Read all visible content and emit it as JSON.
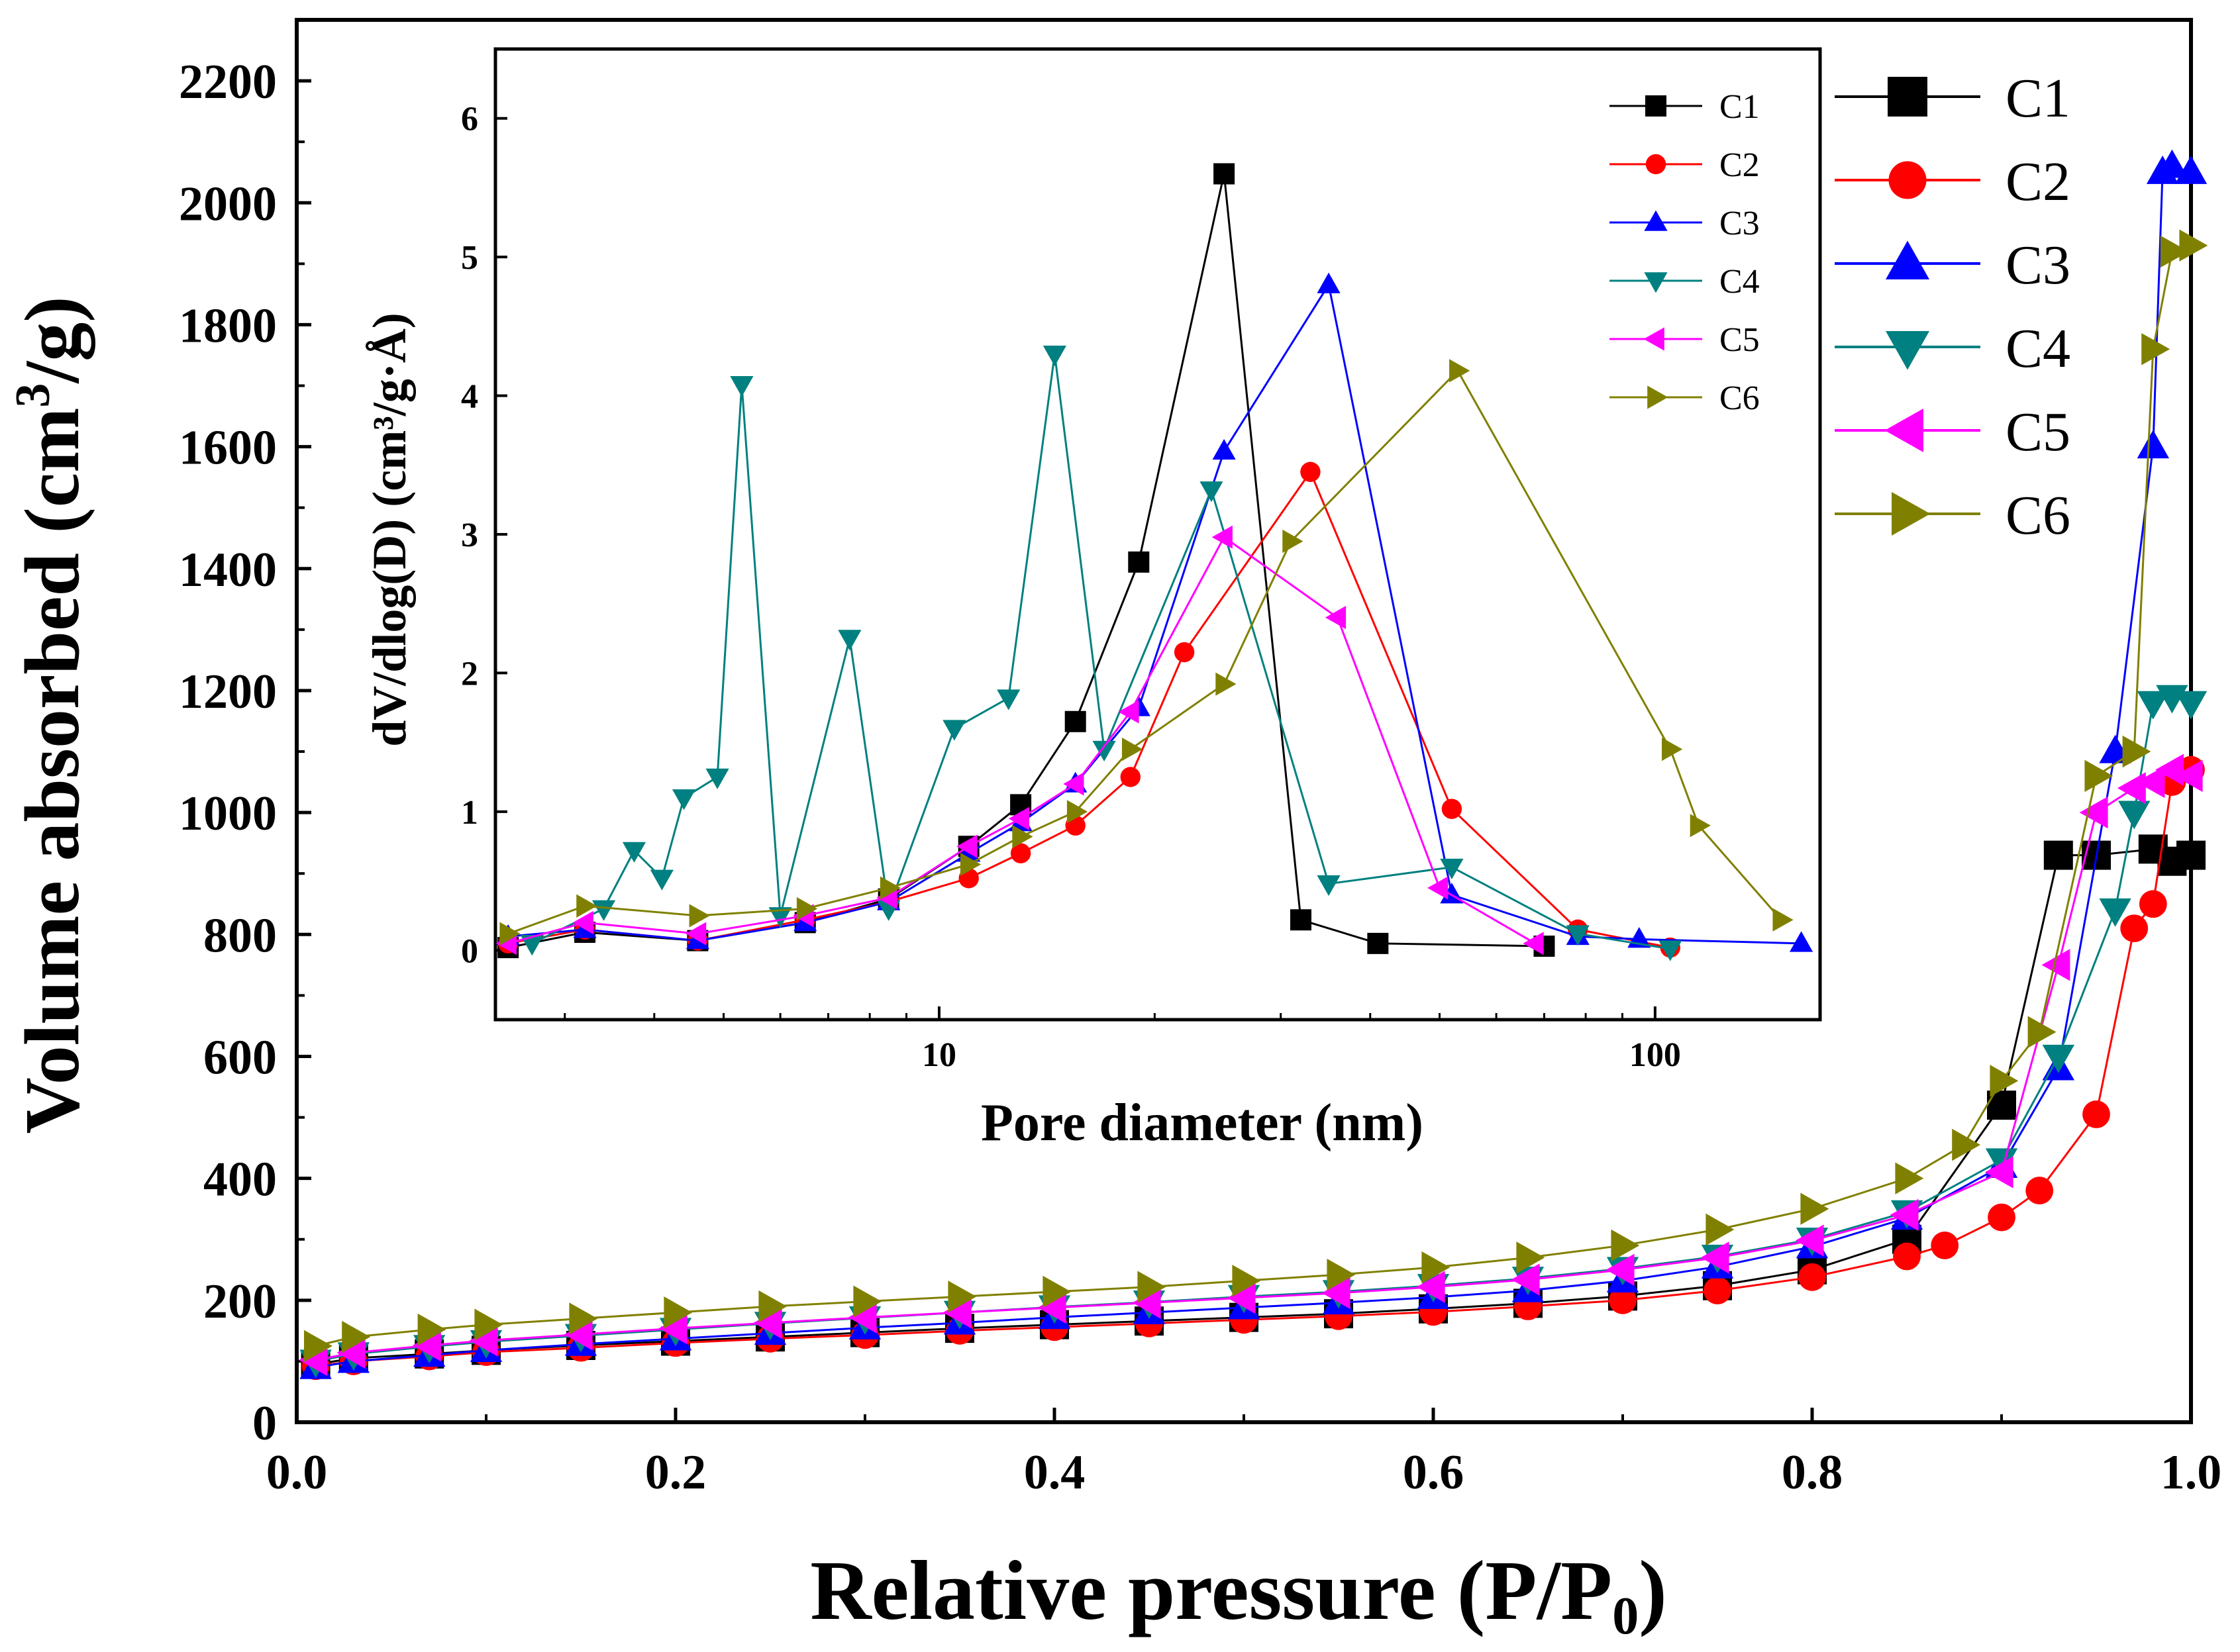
{
  "chart_data": [
    {
      "id": "main",
      "type": "line",
      "title": "",
      "xlabel": "Relative pressure (P/P",
      "xlabel_sub": "0",
      "xlabel_tail": ")",
      "ylabel_pre": "Volume absorbed (cm",
      "ylabel_sup": "3",
      "ylabel_post": "/g)",
      "xlim": [
        0,
        1.0
      ],
      "ylim": [
        0,
        2300
      ],
      "xticks": [
        "0.0",
        "0.2",
        "0.4",
        "0.6",
        "0.8",
        "1.0"
      ],
      "yticks": [
        "0",
        "200",
        "400",
        "600",
        "800",
        "1000",
        "1200",
        "1400",
        "1600",
        "1800",
        "2000",
        "2200"
      ],
      "legend_position": "top-right",
      "series": [
        {
          "name": "C1",
          "color": "#000000",
          "marker": "square",
          "x": [
            0.01,
            0.03,
            0.07,
            0.1,
            0.15,
            0.2,
            0.25,
            0.3,
            0.35,
            0.4,
            0.45,
            0.5,
            0.55,
            0.6,
            0.65,
            0.7,
            0.75,
            0.8,
            0.85,
            0.9,
            0.93,
            0.95,
            0.98,
            0.99,
            1.0
          ],
          "y": [
            95,
            105,
            112,
            118,
            126,
            133,
            140,
            147,
            154,
            160,
            166,
            172,
            178,
            186,
            195,
            207,
            224,
            250,
            300,
            520,
            930,
            930,
            940,
            920,
            930
          ]
        },
        {
          "name": "C2",
          "color": "#ff0000",
          "marker": "circle",
          "x": [
            0.01,
            0.03,
            0.07,
            0.1,
            0.15,
            0.2,
            0.25,
            0.3,
            0.35,
            0.4,
            0.45,
            0.5,
            0.55,
            0.6,
            0.65,
            0.7,
            0.75,
            0.8,
            0.85,
            0.87,
            0.9,
            0.92,
            0.95,
            0.97,
            0.98,
            0.99,
            1.0
          ],
          "y": [
            92,
            100,
            108,
            115,
            122,
            130,
            137,
            143,
            150,
            156,
            162,
            168,
            174,
            181,
            190,
            200,
            216,
            238,
            272,
            290,
            336,
            380,
            505,
            810,
            850,
            1050,
            1070
          ]
        },
        {
          "name": "C3",
          "color": "#0000ff",
          "marker": "triangle-up",
          "x": [
            0.01,
            0.03,
            0.07,
            0.1,
            0.15,
            0.2,
            0.25,
            0.3,
            0.35,
            0.4,
            0.45,
            0.5,
            0.55,
            0.6,
            0.65,
            0.7,
            0.75,
            0.8,
            0.85,
            0.9,
            0.93,
            0.96,
            0.98,
            0.985,
            0.99,
            1.0
          ],
          "y": [
            90,
            100,
            110,
            118,
            128,
            137,
            146,
            155,
            163,
            172,
            180,
            188,
            196,
            205,
            216,
            232,
            255,
            288,
            335,
            420,
            580,
            1100,
            1600,
            2050,
            2060,
            2050
          ]
        },
        {
          "name": "C4",
          "color": "#008080",
          "marker": "triangle-down",
          "x": [
            0.01,
            0.03,
            0.07,
            0.1,
            0.15,
            0.2,
            0.25,
            0.3,
            0.35,
            0.4,
            0.45,
            0.5,
            0.55,
            0.6,
            0.65,
            0.7,
            0.75,
            0.8,
            0.85,
            0.9,
            0.93,
            0.96,
            0.97,
            0.98,
            0.99,
            1.0
          ],
          "y": [
            100,
            112,
            124,
            132,
            142,
            152,
            162,
            171,
            180,
            189,
            197,
            206,
            214,
            224,
            236,
            252,
            272,
            300,
            345,
            430,
            600,
            840,
            1000,
            1180,
            1190,
            1180
          ]
        },
        {
          "name": "C5",
          "color": "#ff00ff",
          "marker": "triangle-left",
          "x": [
            0.01,
            0.03,
            0.07,
            0.1,
            0.15,
            0.2,
            0.25,
            0.3,
            0.35,
            0.4,
            0.45,
            0.5,
            0.55,
            0.6,
            0.65,
            0.7,
            0.75,
            0.8,
            0.85,
            0.9,
            0.93,
            0.95,
            0.97,
            0.98,
            0.99,
            1.0
          ],
          "y": [
            102,
            114,
            126,
            134,
            144,
            154,
            163,
            172,
            180,
            188,
            196,
            204,
            212,
            222,
            234,
            250,
            270,
            298,
            340,
            410,
            750,
            1000,
            1040,
            1050,
            1070,
            1060
          ]
        },
        {
          "name": "C6",
          "color": "#808000",
          "marker": "triangle-right",
          "x": [
            0.01,
            0.03,
            0.07,
            0.1,
            0.15,
            0.2,
            0.25,
            0.3,
            0.35,
            0.4,
            0.45,
            0.5,
            0.55,
            0.6,
            0.65,
            0.7,
            0.75,
            0.8,
            0.85,
            0.88,
            0.9,
            0.92,
            0.95,
            0.97,
            0.98,
            0.99,
            1.0
          ],
          "y": [
            125,
            140,
            152,
            160,
            170,
            180,
            190,
            198,
            206,
            214,
            222,
            232,
            242,
            254,
            270,
            290,
            316,
            350,
            400,
            455,
            560,
            640,
            1060,
            1100,
            1760,
            1920,
            1930
          ]
        }
      ]
    },
    {
      "id": "inset",
      "type": "line",
      "title": "",
      "xlabel": "Pore diameter (nm)",
      "ylabel": "dV/dlog(D) (cm³/g·Å)",
      "xscale": "log",
      "xlim": [
        2.4,
        170
      ],
      "ylim": [
        -0.5,
        6.5
      ],
      "xticks": [
        "10",
        "100"
      ],
      "xtick_values": [
        10,
        100
      ],
      "yticks": [
        "0",
        "1",
        "2",
        "3",
        "4",
        "5",
        "6"
      ],
      "legend_position": "top-right",
      "series": [
        {
          "name": "C1",
          "color": "#000000",
          "marker": "square",
          "x": [
            2.5,
            3.2,
            4.6,
            6.5,
            8.5,
            11,
            13,
            15.5,
            19,
            25,
            32,
            41,
            70
          ],
          "y": [
            0.02,
            0.13,
            0.07,
            0.2,
            0.37,
            0.75,
            1.05,
            1.65,
            2.8,
            5.6,
            0.22,
            0.05,
            0.03
          ]
        },
        {
          "name": "C2",
          "color": "#ff0000",
          "marker": "circle",
          "x": [
            2.5,
            3.2,
            4.6,
            6.5,
            8.5,
            11,
            13,
            15.5,
            18.5,
            22,
            33,
            52,
            78,
            105
          ],
          "y": [
            0.05,
            0.15,
            0.07,
            0.22,
            0.35,
            0.52,
            0.7,
            0.9,
            1.25,
            2.15,
            3.45,
            1.02,
            0.15,
            0.02
          ]
        },
        {
          "name": "C3",
          "color": "#0000ff",
          "marker": "triangle-up",
          "x": [
            2.5,
            3.2,
            4.6,
            6.5,
            8.5,
            11,
            13,
            15.5,
            19,
            25,
            35,
            52,
            78,
            95,
            160
          ],
          "y": [
            0.1,
            0.15,
            0.07,
            0.2,
            0.35,
            0.7,
            0.92,
            1.2,
            1.75,
            3.6,
            4.8,
            0.4,
            0.1,
            0.08,
            0.05
          ]
        },
        {
          "name": "C4",
          "color": "#008080",
          "marker": "triangle-down",
          "x": [
            2.7,
            3.4,
            3.75,
            4.1,
            4.4,
            4.9,
            5.3,
            6.0,
            7.5,
            8.5,
            10.5,
            12.5,
            14.5,
            17,
            24,
            35,
            52,
            78,
            105
          ],
          "y": [
            0.05,
            0.3,
            0.72,
            0.52,
            1.1,
            1.25,
            4.08,
            0.25,
            2.25,
            0.3,
            1.6,
            1.82,
            4.3,
            1.45,
            3.32,
            0.48,
            0.6,
            0.12,
            0.01
          ]
        },
        {
          "name": "C5",
          "color": "#ff00ff",
          "marker": "triangle-left",
          "x": [
            2.5,
            3.2,
            4.6,
            6.5,
            8.5,
            11,
            13,
            15.5,
            18.5,
            25,
            36,
            50,
            68
          ],
          "y": [
            0.05,
            0.2,
            0.12,
            0.25,
            0.38,
            0.75,
            0.95,
            1.2,
            1.72,
            2.98,
            2.4,
            0.45,
            0.05
          ]
        },
        {
          "name": "C6",
          "color": "#808000",
          "marker": "triangle-right",
          "x": [
            2.5,
            3.2,
            4.6,
            6.5,
            8.5,
            11,
            13,
            15.5,
            18.5,
            25,
            31,
            53,
            105,
            115,
            150
          ],
          "y": [
            0.12,
            0.32,
            0.25,
            0.3,
            0.45,
            0.62,
            0.82,
            1.0,
            1.45,
            1.92,
            2.95,
            4.18,
            1.45,
            0.9,
            0.22
          ]
        }
      ]
    }
  ]
}
